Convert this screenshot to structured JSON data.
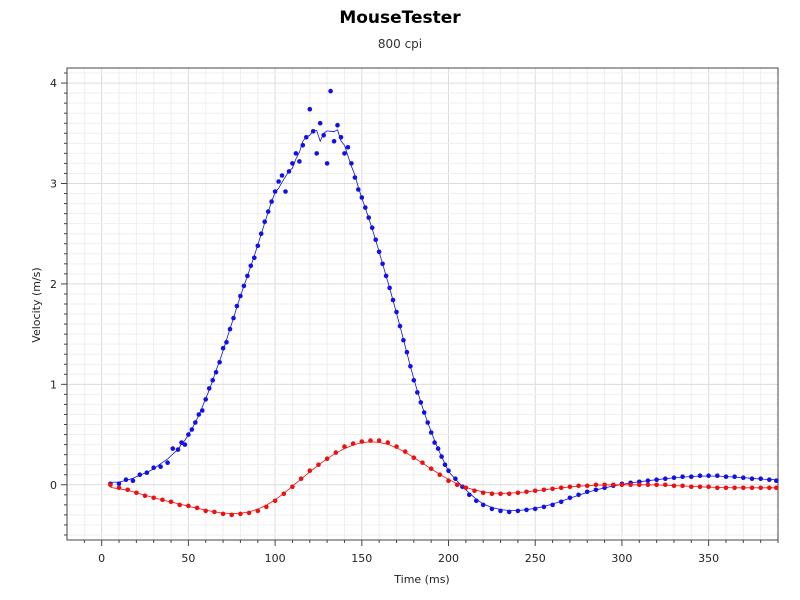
{
  "chart_data": {
    "type": "scatter",
    "title": "MouseTester",
    "subtitle": "800 cpi",
    "xlabel": "Time (ms)",
    "ylabel": "Velocity (m/s)",
    "xlim": [
      -20,
      390
    ],
    "ylim": [
      -0.55,
      4.15
    ],
    "xticks": [
      0,
      50,
      100,
      150,
      200,
      250,
      300,
      350
    ],
    "yticks": [
      0,
      1,
      2,
      3,
      4
    ],
    "grid": true,
    "colors": {
      "x_series": "#1010e8",
      "y_series": "#ee1010"
    },
    "series": [
      {
        "color": "#1010e8",
        "points": [
          [
            5,
            0.01
          ],
          [
            10,
            0.01
          ],
          [
            14,
            0.05
          ],
          [
            18,
            0.04
          ],
          [
            22,
            0.1
          ],
          [
            26,
            0.12
          ],
          [
            30,
            0.17
          ],
          [
            34,
            0.18
          ],
          [
            38,
            0.22
          ],
          [
            41,
            0.36
          ],
          [
            44,
            0.35
          ],
          [
            46,
            0.42
          ],
          [
            48,
            0.4
          ],
          [
            50,
            0.5
          ],
          [
            52,
            0.55
          ],
          [
            54,
            0.62
          ],
          [
            56,
            0.7
          ],
          [
            58,
            0.74
          ],
          [
            60,
            0.85
          ],
          [
            62,
            0.96
          ],
          [
            64,
            1.04
          ],
          [
            66,
            1.12
          ],
          [
            68,
            1.22
          ],
          [
            70,
            1.36
          ],
          [
            72,
            1.42
          ],
          [
            74,
            1.55
          ],
          [
            76,
            1.66
          ],
          [
            78,
            1.78
          ],
          [
            80,
            1.88
          ],
          [
            82,
            1.98
          ],
          [
            84,
            2.08
          ],
          [
            86,
            2.18
          ],
          [
            88,
            2.26
          ],
          [
            90,
            2.38
          ],
          [
            92,
            2.5
          ],
          [
            94,
            2.62
          ],
          [
            96,
            2.72
          ],
          [
            98,
            2.82
          ],
          [
            100,
            2.92
          ],
          [
            102,
            3.02
          ],
          [
            104,
            3.08
          ],
          [
            106,
            2.92
          ],
          [
            108,
            3.12
          ],
          [
            110,
            3.2
          ],
          [
            112,
            3.3
          ],
          [
            114,
            3.22
          ],
          [
            116,
            3.38
          ],
          [
            118,
            3.46
          ],
          [
            120,
            3.74
          ],
          [
            122,
            3.52
          ],
          [
            124,
            3.3
          ],
          [
            126,
            3.6
          ],
          [
            128,
            3.48
          ],
          [
            130,
            3.2
          ],
          [
            132,
            3.92
          ],
          [
            134,
            3.42
          ],
          [
            136,
            3.58
          ],
          [
            138,
            3.46
          ],
          [
            140,
            3.3
          ],
          [
            142,
            3.36
          ],
          [
            144,
            3.2
          ],
          [
            146,
            3.06
          ],
          [
            148,
            2.94
          ],
          [
            150,
            2.86
          ],
          [
            152,
            2.76
          ],
          [
            154,
            2.66
          ],
          [
            156,
            2.56
          ],
          [
            158,
            2.44
          ],
          [
            160,
            2.32
          ],
          [
            162,
            2.2
          ],
          [
            164,
            2.08
          ],
          [
            166,
            1.96
          ],
          [
            168,
            1.84
          ],
          [
            170,
            1.72
          ],
          [
            172,
            1.58
          ],
          [
            174,
            1.44
          ],
          [
            176,
            1.32
          ],
          [
            178,
            1.18
          ],
          [
            180,
            1.04
          ],
          [
            182,
            0.92
          ],
          [
            184,
            0.82
          ],
          [
            186,
            0.72
          ],
          [
            188,
            0.62
          ],
          [
            190,
            0.52
          ],
          [
            192,
            0.42
          ],
          [
            194,
            0.36
          ],
          [
            196,
            0.28
          ],
          [
            198,
            0.2
          ],
          [
            200,
            0.14
          ],
          [
            204,
            0.06
          ],
          [
            208,
            -0.02
          ],
          [
            212,
            -0.1
          ],
          [
            216,
            -0.16
          ],
          [
            220,
            -0.2
          ],
          [
            225,
            -0.24
          ],
          [
            230,
            -0.26
          ],
          [
            235,
            -0.27
          ],
          [
            240,
            -0.26
          ],
          [
            245,
            -0.25
          ],
          [
            250,
            -0.24
          ],
          [
            255,
            -0.22
          ],
          [
            260,
            -0.2
          ],
          [
            265,
            -0.17
          ],
          [
            270,
            -0.13
          ],
          [
            275,
            -0.1
          ],
          [
            280,
            -0.07
          ],
          [
            285,
            -0.05
          ],
          [
            290,
            -0.03
          ],
          [
            295,
            -0.01
          ],
          [
            300,
            0.01
          ],
          [
            305,
            0.02
          ],
          [
            310,
            0.03
          ],
          [
            315,
            0.04
          ],
          [
            320,
            0.05
          ],
          [
            325,
            0.06
          ],
          [
            330,
            0.07
          ],
          [
            335,
            0.08
          ],
          [
            340,
            0.08
          ],
          [
            345,
            0.09
          ],
          [
            350,
            0.09
          ],
          [
            355,
            0.09
          ],
          [
            360,
            0.08
          ],
          [
            365,
            0.08
          ],
          [
            370,
            0.07
          ],
          [
            375,
            0.06
          ],
          [
            380,
            0.06
          ],
          [
            385,
            0.05
          ],
          [
            389,
            0.04
          ]
        ]
      },
      {
        "color": "#ee1010",
        "points": [
          [
            5,
            0.0
          ],
          [
            10,
            -0.03
          ],
          [
            15,
            -0.05
          ],
          [
            20,
            -0.08
          ],
          [
            25,
            -0.11
          ],
          [
            30,
            -0.13
          ],
          [
            35,
            -0.15
          ],
          [
            40,
            -0.17
          ],
          [
            45,
            -0.2
          ],
          [
            50,
            -0.21
          ],
          [
            55,
            -0.23
          ],
          [
            60,
            -0.26
          ],
          [
            65,
            -0.27
          ],
          [
            70,
            -0.29
          ],
          [
            75,
            -0.3
          ],
          [
            80,
            -0.29
          ],
          [
            85,
            -0.28
          ],
          [
            90,
            -0.26
          ],
          [
            95,
            -0.22
          ],
          [
            100,
            -0.16
          ],
          [
            105,
            -0.09
          ],
          [
            110,
            -0.02
          ],
          [
            115,
            0.06
          ],
          [
            120,
            0.14
          ],
          [
            125,
            0.2
          ],
          [
            130,
            0.26
          ],
          [
            135,
            0.32
          ],
          [
            140,
            0.38
          ],
          [
            145,
            0.41
          ],
          [
            150,
            0.43
          ],
          [
            155,
            0.44
          ],
          [
            160,
            0.44
          ],
          [
            165,
            0.42
          ],
          [
            170,
            0.38
          ],
          [
            175,
            0.33
          ],
          [
            180,
            0.27
          ],
          [
            185,
            0.22
          ],
          [
            190,
            0.16
          ],
          [
            195,
            0.1
          ],
          [
            200,
            0.04
          ],
          [
            205,
            0.0
          ],
          [
            210,
            -0.03
          ],
          [
            215,
            -0.06
          ],
          [
            220,
            -0.08
          ],
          [
            225,
            -0.09
          ],
          [
            230,
            -0.09
          ],
          [
            235,
            -0.09
          ],
          [
            240,
            -0.08
          ],
          [
            245,
            -0.07
          ],
          [
            250,
            -0.06
          ],
          [
            255,
            -0.05
          ],
          [
            260,
            -0.04
          ],
          [
            265,
            -0.03
          ],
          [
            270,
            -0.02
          ],
          [
            275,
            -0.01
          ],
          [
            280,
            -0.01
          ],
          [
            285,
            0.0
          ],
          [
            290,
            0.0
          ],
          [
            295,
            0.0
          ],
          [
            300,
            0.0
          ],
          [
            305,
            0.0
          ],
          [
            310,
            0.0
          ],
          [
            315,
            0.0
          ],
          [
            320,
            0.0
          ],
          [
            325,
            0.0
          ],
          [
            330,
            -0.01
          ],
          [
            335,
            -0.01
          ],
          [
            340,
            -0.02
          ],
          [
            345,
            -0.02
          ],
          [
            350,
            -0.02
          ],
          [
            355,
            -0.03
          ],
          [
            360,
            -0.03
          ],
          [
            365,
            -0.03
          ],
          [
            370,
            -0.03
          ],
          [
            375,
            -0.03
          ],
          [
            380,
            -0.03
          ],
          [
            385,
            -0.03
          ],
          [
            389,
            -0.03
          ]
        ]
      }
    ]
  }
}
